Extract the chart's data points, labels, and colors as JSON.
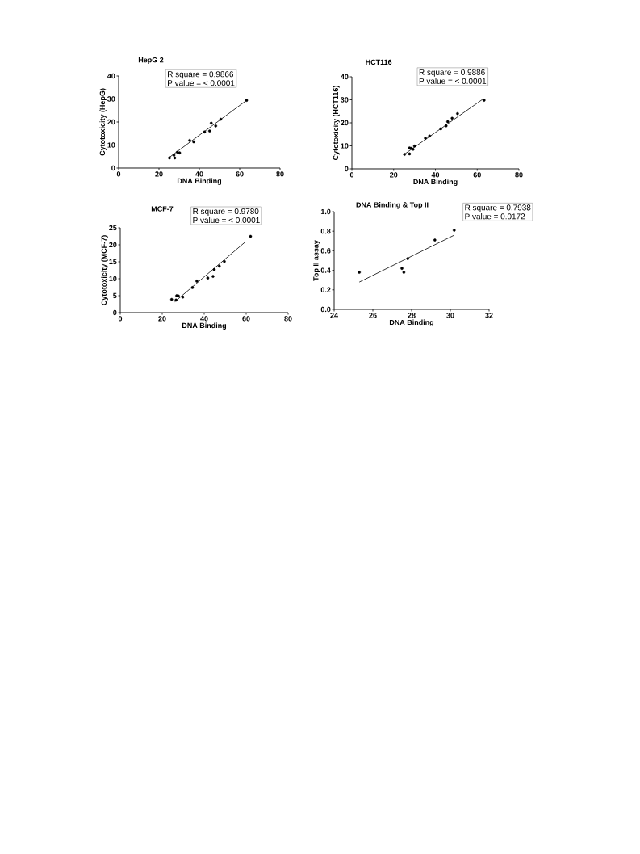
{
  "chart_data": [
    {
      "type": "scatter",
      "title": "HepG 2",
      "xlabel": "DNA Binding",
      "ylabel": "Cytotoxicity (HepG)",
      "xlim": [
        0,
        80
      ],
      "ylim": [
        0,
        40
      ],
      "xticks": [
        0,
        20,
        40,
        60,
        80
      ],
      "yticks": [
        0,
        10,
        20,
        30,
        40
      ],
      "marker": "circle",
      "series": [
        {
          "color": "#000000",
          "x": [
            25.2,
            27.4,
            27.8,
            29.1,
            30.2,
            35.2,
            37.2,
            42.6,
            45.1,
            45.9,
            48.1,
            50.6,
            63.4
          ],
          "values": [
            4.4,
            5.6,
            4.4,
            6.9,
            6.6,
            12.0,
            11.4,
            15.7,
            16.1,
            19.5,
            18.3,
            21.2,
            29.4
          ]
        },
        {
          "type": "line",
          "marker": "none",
          "color": "#000000",
          "x": [
            25.2,
            63.4
          ],
          "values": [
            4.7,
            29.4
          ]
        }
      ],
      "annotations": [
        "R square = 0.9866",
        "P value =  < 0.0001"
      ]
    },
    {
      "type": "scatter",
      "title": "HCT116",
      "xlabel": "DNA Binding",
      "ylabel": "Cytotoxicity (HCT116)",
      "xlim": [
        0,
        80
      ],
      "ylim": [
        0,
        40
      ],
      "xticks": [
        0,
        20,
        40,
        60,
        80
      ],
      "yticks": [
        0,
        10,
        20,
        30,
        40
      ],
      "marker": "circle",
      "series": [
        {
          "color": "#000000",
          "x": [
            25.2,
            27.6,
            27.6,
            28.4,
            29.3,
            30.0,
            35.2,
            37.2,
            42.6,
            45.1,
            45.9,
            48.0,
            50.6,
            63.3
          ],
          "values": [
            6.3,
            6.5,
            9.1,
            8.9,
            8.5,
            9.9,
            13.3,
            14.3,
            17.4,
            18.7,
            20.5,
            22.0,
            24.0,
            29.8
          ]
        },
        {
          "type": "line",
          "marker": "none",
          "color": "#000000",
          "x": [
            24.9,
            62.6
          ],
          "values": [
            6.2,
            30.2
          ]
        }
      ],
      "annotations": [
        "R square = 0.9886",
        "P value = < 0.0001"
      ]
    },
    {
      "type": "scatter",
      "title": "MCF-7",
      "xlabel": "DNA Binding",
      "ylabel": "Cytotoxicity (MCF-7)",
      "xlim": [
        0,
        80
      ],
      "ylim": [
        0,
        25
      ],
      "xticks": [
        0,
        20,
        40,
        60,
        80
      ],
      "yticks": [
        0,
        5,
        10,
        15,
        20,
        25
      ],
      "marker": "circle",
      "series": [
        {
          "color": "#000000",
          "x": [
            24.5,
            26.9,
            26.6,
            27.7,
            29.8,
            34.4,
            36.5,
            41.7,
            44.2,
            44.8,
            47.2,
            49.6,
            62.1
          ],
          "values": [
            3.9,
            5.0,
            3.7,
            4.9,
            4.6,
            7.4,
            9.3,
            10.2,
            10.7,
            12.7,
            13.7,
            15.1,
            22.5
          ]
        },
        {
          "type": "line",
          "marker": "none",
          "color": "#000000",
          "x": [
            26.0,
            59.3
          ],
          "values": [
            3.2,
            20.7
          ]
        }
      ],
      "annotations": [
        "R square = 0.9780",
        "P value = < 0.0001"
      ]
    },
    {
      "type": "scatter",
      "title": "DNA Binding & Top II",
      "xlabel": "DNA Binding",
      "ylabel": "Top II assay",
      "xlim": [
        24,
        32
      ],
      "ylim": [
        0,
        1
      ],
      "xticks": [
        24,
        26,
        28,
        30,
        32
      ],
      "yticks": [
        {
          "value": 0,
          "label": "0.0"
        },
        {
          "value": 0.2,
          "label": "0.2"
        },
        {
          "value": 0.4,
          "label": "0.4"
        },
        {
          "value": 0.6,
          "label": "0.6"
        },
        {
          "value": 0.8,
          "label": "0.8"
        },
        {
          "value": 1,
          "label": "1.0"
        }
      ],
      "marker": "circle",
      "series": [
        {
          "color": "#000000",
          "x": [
            25.3,
            27.5,
            27.6,
            27.8,
            29.2,
            30.2
          ],
          "values": [
            0.38,
            0.42,
            0.38,
            0.52,
            0.71,
            0.81
          ]
        },
        {
          "type": "line",
          "marker": "none",
          "color": "#000000",
          "x": [
            25.3,
            30.2
          ],
          "values": [
            0.28,
            0.76
          ]
        }
      ],
      "annotations": [
        "R square = 0.7938",
        "P value = 0.0172"
      ]
    }
  ]
}
